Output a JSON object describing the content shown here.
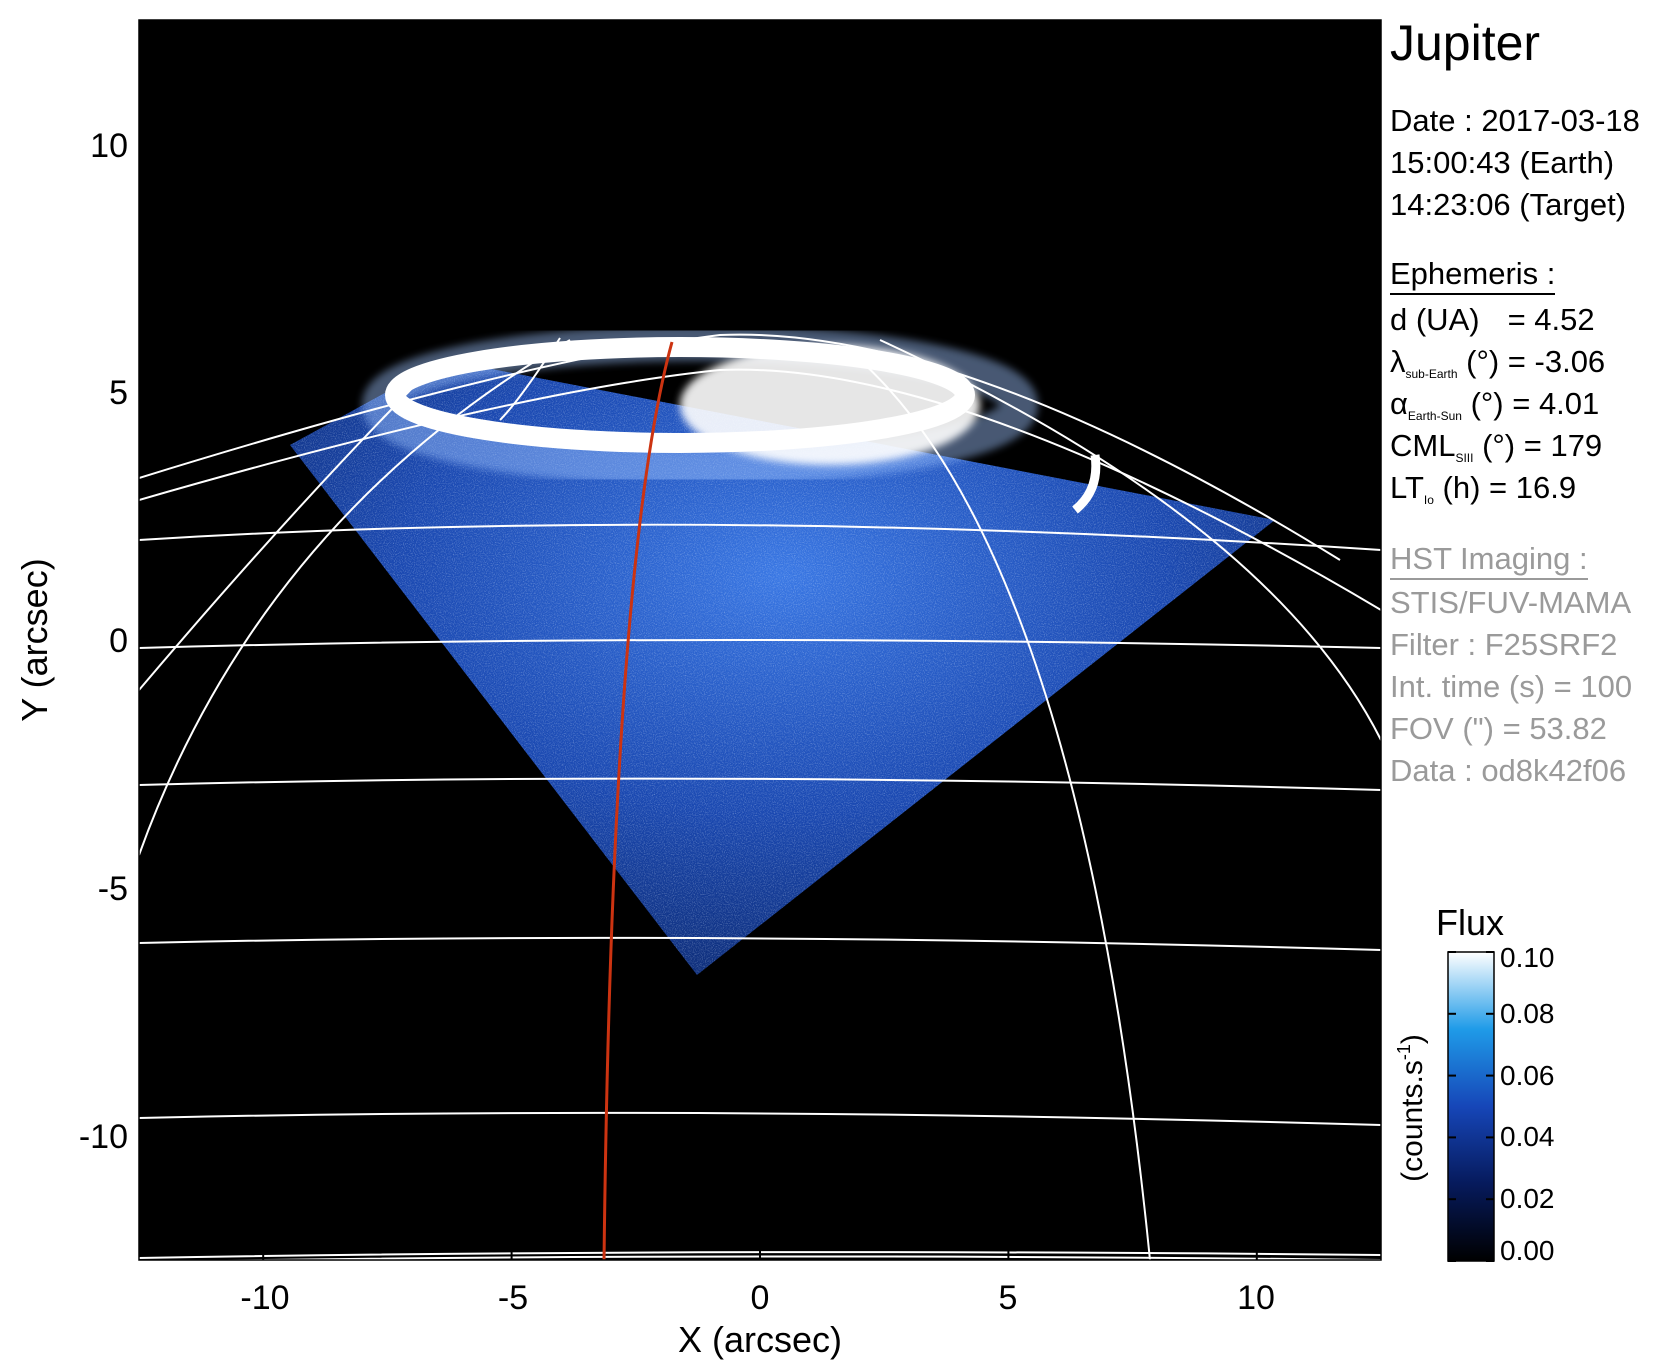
{
  "chart_data": {
    "type": "image",
    "title": "Jupiter",
    "xlabel": "X (arcsec)",
    "ylabel": "Y (arcsec)",
    "xlim": [
      -12.5,
      12.5
    ],
    "ylim": [
      -12.5,
      12.5
    ],
    "xticks": [
      -10,
      -5,
      0,
      5,
      10
    ],
    "yticks": [
      10,
      5,
      0,
      -5,
      -10
    ],
    "colorbar": {
      "title": "Flux",
      "label": "(counts.s",
      "label_sup": "-1",
      "label_close": ")",
      "ticks": [
        "0.10",
        "0.08",
        "0.06",
        "0.04",
        "0.02",
        "0.00"
      ],
      "range": [
        0.0,
        0.1
      ]
    },
    "grid": true,
    "colors": {
      "background": "#000000",
      "grid": "#ffffff",
      "meridian": "#cc3311",
      "aurora": "#ffffff",
      "glow": "#1f5ad8"
    }
  },
  "info": {
    "date": "Date : 2017-03-18",
    "earth_time": "15:00:43 (Earth)",
    "target_time": "14:23:06 (Target)",
    "ephemeris_header": "Ephemeris :",
    "d_label": "d (UA)",
    "d_value": "= 4.52",
    "lat_symbol": "λ",
    "lat_sub": "sub-Earth",
    "lat_rest": " (°) = -3.06",
    "phase_symbol": "α",
    "phase_sub": "Earth-Sun",
    "phase_rest": " (°) = 4.01",
    "cml_symbol": "CML",
    "cml_sub": "SIII",
    "cml_rest": " (°) = 179",
    "lt_symbol": "LT",
    "lt_sub": "Io",
    "lt_rest": " (h) = 16.9",
    "hst_header": "HST Imaging :",
    "instrument": "STIS/FUV-MAMA",
    "filter": "Filter : F25SRF2",
    "int_time": "Int. time (s) = 100",
    "fov": "FOV (\") = 53.82",
    "data_id": "Data : od8k42f06"
  }
}
